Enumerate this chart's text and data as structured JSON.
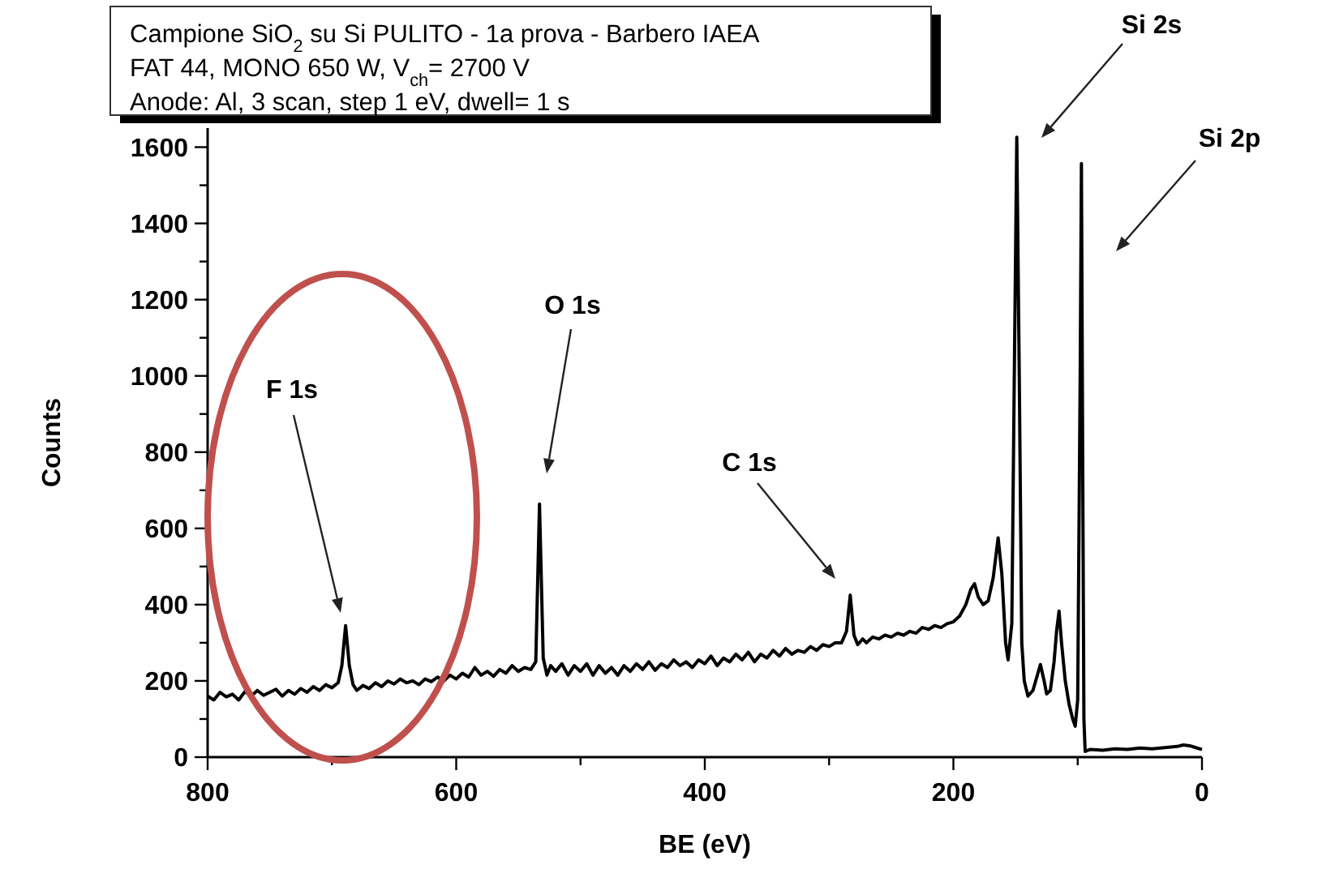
{
  "chart_data": {
    "type": "line",
    "title": "Campione SiO$_{2}$ su Si PULITO - 1a prova - Barbero IAEA",
    "subtitle": "FAT 44, MONO 650 W,  V$_{ch}$= 2700 V",
    "xlabel": "BE (eV)",
    "ylabel": "Counts",
    "x": [
      800,
      795,
      790,
      785,
      780,
      775,
      770,
      765,
      760,
      755,
      750,
      745,
      740,
      735,
      730,
      725,
      720,
      715,
      710,
      705,
      700,
      695,
      692,
      689,
      686,
      683,
      680,
      675,
      670,
      665,
      660,
      655,
      650,
      645,
      640,
      635,
      630,
      625,
      620,
      615,
      610,
      605,
      600,
      595,
      590,
      585,
      580,
      575,
      570,
      565,
      560,
      555,
      550,
      545,
      540,
      536,
      533,
      530,
      527,
      524,
      520,
      515,
      510,
      505,
      500,
      495,
      490,
      485,
      480,
      475,
      470,
      465,
      460,
      455,
      450,
      445,
      440,
      435,
      430,
      425,
      420,
      415,
      410,
      405,
      400,
      395,
      390,
      385,
      380,
      375,
      370,
      365,
      360,
      355,
      350,
      345,
      340,
      335,
      330,
      325,
      320,
      315,
      310,
      305,
      300,
      295,
      290,
      286,
      283,
      280,
      277,
      273,
      270,
      265,
      260,
      255,
      250,
      245,
      240,
      235,
      230,
      225,
      220,
      215,
      210,
      205,
      200,
      195,
      190,
      186,
      183,
      180,
      176,
      172,
      168,
      164,
      161,
      158,
      156,
      153,
      151,
      149,
      147,
      145,
      143,
      140,
      136,
      132,
      130,
      127,
      125,
      122,
      119,
      117,
      115,
      113,
      110,
      107,
      104,
      102,
      100,
      98,
      97,
      96,
      95,
      94,
      90,
      80,
      70,
      60,
      50,
      40,
      30,
      20,
      15,
      10,
      5,
      0
    ],
    "series": [
      {
        "color": "#000000",
        "values": [
          160,
          150,
          170,
          158,
          165,
          150,
          172,
          160,
          175,
          162,
          170,
          178,
          160,
          175,
          165,
          180,
          170,
          185,
          175,
          190,
          182,
          195,
          240,
          345,
          240,
          190,
          175,
          188,
          180,
          195,
          185,
          200,
          192,
          205,
          195,
          200,
          190,
          205,
          198,
          210,
          200,
          215,
          205,
          220,
          210,
          235,
          215,
          225,
          212,
          230,
          220,
          240,
          225,
          235,
          230,
          250,
          664,
          260,
          215,
          240,
          225,
          245,
          215,
          240,
          225,
          245,
          215,
          240,
          220,
          235,
          215,
          240,
          225,
          245,
          230,
          250,
          228,
          245,
          235,
          255,
          240,
          250,
          235,
          255,
          245,
          265,
          240,
          260,
          250,
          270,
          255,
          275,
          250,
          270,
          260,
          280,
          265,
          285,
          270,
          280,
          275,
          290,
          280,
          295,
          290,
          300,
          300,
          330,
          425,
          320,
          295,
          310,
          300,
          315,
          310,
          320,
          315,
          325,
          320,
          330,
          325,
          340,
          335,
          345,
          340,
          350,
          355,
          370,
          400,
          440,
          455,
          420,
          400,
          410,
          470,
          575,
          480,
          300,
          255,
          350,
          1000,
          1626,
          1000,
          300,
          200,
          160,
          175,
          220,
          243,
          200,
          166,
          175,
          250,
          330,
          383,
          300,
          200,
          140,
          100,
          81,
          150,
          1000,
          1557,
          800,
          100,
          15,
          20,
          18,
          22,
          20,
          24,
          22,
          25,
          28,
          32,
          30,
          25,
          20
        ]
      }
    ],
    "xlim": [
      800,
      0
    ],
    "xticks": [
      800,
      {
        "value": 700,
        "label": null
      },
      600,
      {
        "value": 500,
        "label": null
      },
      400,
      {
        "value": 300,
        "label": null
      },
      200,
      {
        "value": 100,
        "label": null
      },
      0
    ],
    "ylim": [
      0,
      1650
    ],
    "yticks": [
      0,
      {
        "value": 100,
        "label": null
      },
      200,
      {
        "value": 300,
        "label": null
      },
      400,
      {
        "value": 500,
        "label": null
      },
      600,
      {
        "value": 700,
        "label": null
      },
      800,
      {
        "value": 900,
        "label": null
      },
      1000,
      {
        "value": 1100,
        "label": null
      },
      1200,
      {
        "value": 1300,
        "label": null
      },
      1400,
      {
        "value": 1500,
        "label": null
      },
      1600
    ],
    "grid": false,
    "marker": "none",
    "line_style": "solid",
    "annotations": [
      "Anode: Al, 3 scan, step 1 eV, dwell= 1 s",
      "F 1s",
      "O 1s",
      "C 1s",
      "Si 2s",
      "Si 2p"
    ]
  }
}
